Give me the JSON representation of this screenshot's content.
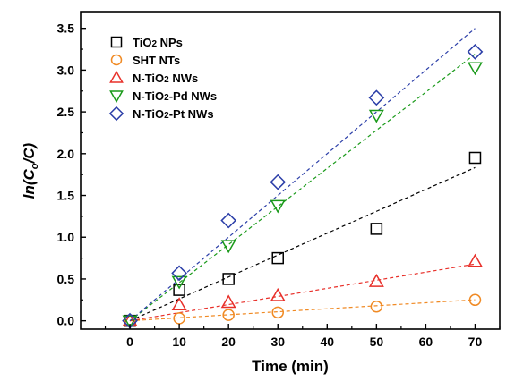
{
  "chart_data": {
    "type": "scatter",
    "xlabel": "Time (min)",
    "ylabel_parts": {
      "main": "ln(C",
      "sub1": "o",
      "mid": "/C",
      "end": ")"
    },
    "xlim": [
      -10,
      75
    ],
    "ylim": [
      -0.1,
      3.7
    ],
    "x_ticks": [
      0,
      10,
      20,
      30,
      40,
      50,
      60,
      70
    ],
    "y_ticks": [
      0.0,
      0.5,
      1.0,
      1.5,
      2.0,
      2.5,
      3.0,
      3.5
    ],
    "y_tick_labels": [
      "0.0",
      "0.5",
      "1.0",
      "1.5",
      "2.0",
      "2.5",
      "3.0",
      "3.5"
    ],
    "grid": false,
    "legend_position": "top-left",
    "series": [
      {
        "name_parts": [
          "TiO",
          "2",
          " NPs"
        ],
        "marker": "square",
        "color": "#000000",
        "x": [
          0,
          10,
          20,
          30,
          50,
          70
        ],
        "y": [
          0.0,
          0.37,
          0.5,
          0.75,
          1.1,
          1.95
        ],
        "fit": [
          0.0,
          0.0262
        ]
      },
      {
        "name_parts": [
          "SHT NTs",
          "",
          ""
        ],
        "marker": "circle",
        "color": "#f08a24",
        "x": [
          0,
          10,
          20,
          30,
          50,
          70
        ],
        "y": [
          0.0,
          0.03,
          0.07,
          0.1,
          0.17,
          0.25
        ],
        "fit": [
          0.0,
          0.0036
        ]
      },
      {
        "name_parts": [
          "N-TiO",
          "2",
          " NWs"
        ],
        "marker": "triangle-up",
        "color": "#e8302a",
        "x": [
          0,
          10,
          20,
          30,
          50,
          70
        ],
        "y": [
          0.0,
          0.19,
          0.22,
          0.3,
          0.47,
          0.71
        ],
        "fit": [
          0.0,
          0.0097
        ]
      },
      {
        "name_parts": [
          "N-TiO",
          "2",
          "-Pd NWs"
        ],
        "marker": "triangle-down",
        "color": "#1a9a1a",
        "x": [
          0,
          10,
          20,
          30,
          50,
          70
        ],
        "y": [
          0.0,
          0.47,
          0.9,
          1.38,
          2.46,
          3.03
        ],
        "fit": [
          0.0,
          0.0456
        ]
      },
      {
        "name_parts": [
          "N-TiO",
          "2",
          "-Pt NWs"
        ],
        "marker": "diamond",
        "color": "#2b3ea8",
        "x": [
          0,
          10,
          20,
          30,
          50,
          70
        ],
        "y": [
          0.0,
          0.57,
          1.2,
          1.66,
          2.67,
          3.22
        ],
        "fit": [
          0.0,
          0.05
        ]
      }
    ]
  }
}
